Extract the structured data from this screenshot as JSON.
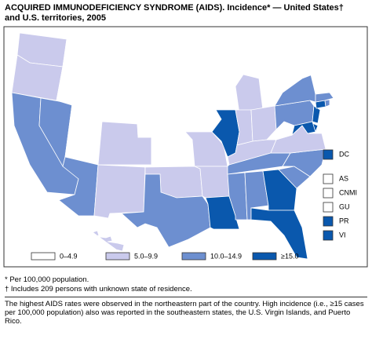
{
  "title_lines": [
    "ACQUIRED IMMUNODEFICIENCY SYNDROME (AIDS). Incidence* — United States†",
    "and U.S. territories, 2005"
  ],
  "legend": [
    {
      "label": "0–4.9",
      "color": "#ffffff"
    },
    {
      "label": "5.0–9.9",
      "color": "#cacaec"
    },
    {
      "label": "10.0–14.9",
      "color": "#6d8fd0"
    },
    {
      "label": "≥15.0",
      "color": "#0a58ad"
    }
  ],
  "regions": [
    1,
    1,
    2,
    2,
    0,
    0,
    0,
    0,
    2,
    1,
    1,
    0,
    0,
    0,
    0,
    1,
    2,
    0,
    0,
    1,
    1,
    3,
    0,
    3,
    1,
    1,
    1,
    1,
    2,
    2,
    2,
    3,
    3,
    2,
    2,
    1,
    0,
    2,
    2,
    3,
    3,
    3,
    3,
    2,
    2,
    0,
    0,
    0,
    0,
    1
  ],
  "insets": [
    {
      "label": "DC",
      "class": 3
    },
    {
      "label": "AS",
      "class": 0
    },
    {
      "label": "CNMI",
      "class": 0
    },
    {
      "label": "GU",
      "class": 0
    },
    {
      "label": "PR",
      "class": 3
    },
    {
      "label": "VI",
      "class": 3
    }
  ],
  "footnotes": [
    "* Per 100,000 population.",
    "† Includes 209 persons with unknown state of residence."
  ],
  "note": "The highest AIDS rates were observed in the northeastern part of the country. High incidence (i.e., ≥15 cases per 100,000 population) also was reported in the southeastern states, the U.S. Virgin Islands, and Puerto Rico."
}
